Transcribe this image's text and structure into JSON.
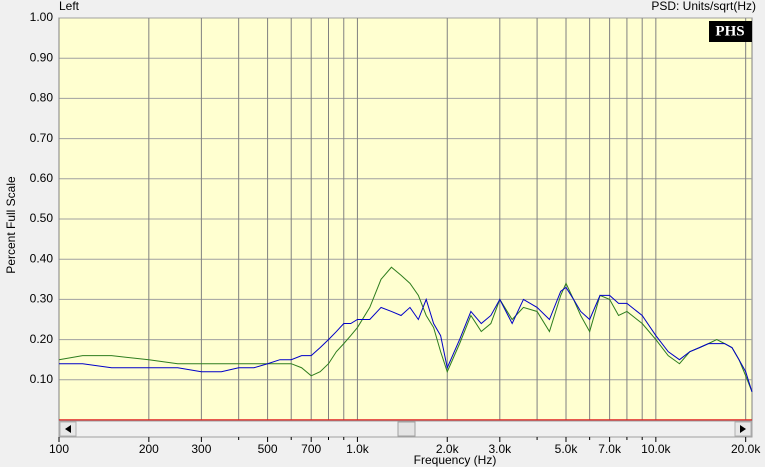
{
  "chart_data": {
    "type": "line",
    "channel": "Left",
    "units": "PSD: Units/sqrt(Hz)",
    "logo": "PHS",
    "xlabel": "Frequency (Hz)",
    "ylabel": "Percent Full Scale",
    "xscale": "log",
    "grid": true,
    "xlim": [
      100,
      21000
    ],
    "ylim": [
      0,
      1
    ],
    "xticks": [
      100,
      200,
      300,
      500,
      700,
      {
        "value": 1000,
        "label": "1.0k"
      },
      {
        "value": 2000,
        "label": "2.0k"
      },
      {
        "value": 3000,
        "label": "3.0k"
      },
      {
        "value": 5000,
        "label": "5.0k"
      },
      {
        "value": 7000,
        "label": "7.0k"
      },
      {
        "value": 10000,
        "label": "10.0k"
      },
      {
        "value": 20000,
        "label": "20.0k"
      }
    ],
    "x_minor_ticks": [
      400,
      600,
      800,
      900,
      4000,
      6000,
      8000,
      9000
    ],
    "yticks": [
      {
        "value": 0.1,
        "label": "0.10"
      },
      {
        "value": 0.2,
        "label": "0.20"
      },
      {
        "value": 0.3,
        "label": "0.30"
      },
      {
        "value": 0.4,
        "label": "0.40"
      },
      {
        "value": 0.5,
        "label": "0.50"
      },
      {
        "value": 0.6,
        "label": "0.60"
      },
      {
        "value": 0.7,
        "label": "0.70"
      },
      {
        "value": 0.8,
        "label": "0.80"
      },
      {
        "value": 0.9,
        "label": "0.90"
      },
      {
        "value": 1,
        "label": "1.00"
      }
    ],
    "x": [
      100,
      120,
      150,
      200,
      250,
      300,
      350,
      400,
      450,
      500,
      550,
      600,
      650,
      700,
      750,
      800,
      850,
      900,
      950,
      1000,
      1100,
      1200,
      1300,
      1400,
      1500,
      1600,
      1700,
      1800,
      1900,
      2000,
      2200,
      2400,
      2600,
      2800,
      3000,
      3300,
      3600,
      4000,
      4400,
      4800,
      5000,
      5300,
      5600,
      6000,
      6500,
      7000,
      7500,
      8000,
      9000,
      10000,
      11000,
      12000,
      13000,
      14000,
      15000,
      16000,
      17000,
      18000,
      19000,
      20000,
      21000
    ],
    "series": [
      {
        "color": "#2e7d1e",
        "values": [
          0.15,
          0.16,
          0.16,
          0.15,
          0.14,
          0.14,
          0.14,
          0.14,
          0.14,
          0.14,
          0.14,
          0.14,
          0.13,
          0.11,
          0.12,
          0.14,
          0.17,
          0.19,
          0.21,
          0.23,
          0.28,
          0.35,
          0.38,
          0.36,
          0.34,
          0.31,
          0.26,
          0.23,
          0.17,
          0.12,
          0.19,
          0.26,
          0.22,
          0.24,
          0.3,
          0.25,
          0.28,
          0.27,
          0.22,
          0.31,
          0.34,
          0.3,
          0.26,
          0.22,
          0.31,
          0.3,
          0.26,
          0.27,
          0.24,
          0.2,
          0.16,
          0.14,
          0.17,
          0.18,
          0.19,
          0.2,
          0.19,
          0.18,
          0.15,
          0.11,
          0.07
        ]
      },
      {
        "color": "#0000c8",
        "values": [
          0.14,
          0.14,
          0.13,
          0.13,
          0.13,
          0.12,
          0.12,
          0.13,
          0.13,
          0.14,
          0.15,
          0.15,
          0.16,
          0.16,
          0.18,
          0.2,
          0.22,
          0.24,
          0.24,
          0.25,
          0.25,
          0.28,
          0.27,
          0.26,
          0.28,
          0.25,
          0.3,
          0.24,
          0.21,
          0.13,
          0.2,
          0.27,
          0.24,
          0.26,
          0.3,
          0.24,
          0.3,
          0.28,
          0.25,
          0.32,
          0.33,
          0.3,
          0.27,
          0.25,
          0.31,
          0.31,
          0.29,
          0.29,
          0.26,
          0.21,
          0.17,
          0.15,
          0.17,
          0.18,
          0.19,
          0.19,
          0.19,
          0.18,
          0.15,
          0.12,
          0.07
        ]
      }
    ]
  }
}
